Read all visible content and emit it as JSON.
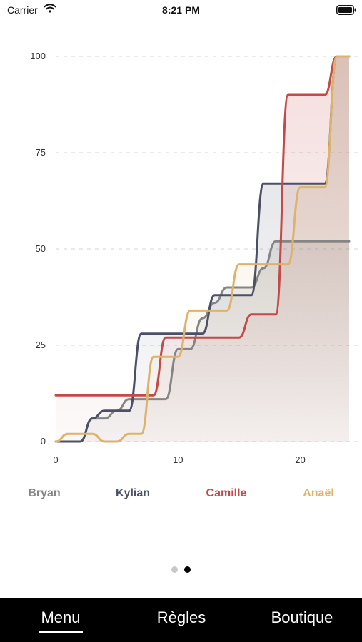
{
  "status_bar": {
    "carrier": "Carrier",
    "time": "8:21 PM"
  },
  "colors": {
    "Bryan": "#858585",
    "Kylian": "#4a5066",
    "Camille": "#c34a48",
    "Anaël": "#ddb36c"
  },
  "chart_data": {
    "type": "line",
    "title": "",
    "xlabel": "",
    "ylabel": "",
    "xlim": [
      0,
      24
    ],
    "ylim": [
      0,
      100
    ],
    "x_ticks": [
      0,
      10,
      20
    ],
    "y_ticks": [
      0,
      25,
      50,
      75,
      100
    ],
    "grid": "horizontal dashed",
    "series": [
      {
        "name": "Bryan",
        "x": [
          0,
          1,
          2,
          3,
          4,
          5,
          6,
          7,
          8,
          9,
          10,
          11,
          12,
          13,
          14,
          15,
          16,
          17,
          18,
          19,
          20,
          21,
          22,
          23,
          24
        ],
        "y": [
          0,
          0,
          0,
          6,
          6,
          8,
          11,
          11,
          11,
          11,
          24,
          24,
          32,
          36,
          40,
          40,
          40,
          45,
          52,
          52,
          52,
          52,
          52,
          52,
          52
        ]
      },
      {
        "name": "Kylian",
        "x": [
          0,
          1,
          2,
          3,
          4,
          5,
          6,
          7,
          8,
          9,
          10,
          11,
          12,
          13,
          14,
          15,
          16,
          17,
          18,
          19,
          20,
          21,
          22,
          23,
          24
        ],
        "y": [
          0,
          0,
          0,
          6,
          8,
          8,
          8,
          28,
          28,
          28,
          28,
          28,
          28,
          38,
          38,
          38,
          38,
          67,
          67,
          67,
          67,
          67,
          67,
          100,
          100
        ]
      },
      {
        "name": "Camille",
        "x": [
          0,
          1,
          2,
          3,
          4,
          5,
          6,
          7,
          8,
          9,
          10,
          11,
          12,
          13,
          14,
          15,
          16,
          17,
          18,
          19,
          20,
          21,
          22,
          23,
          24
        ],
        "y": [
          12,
          12,
          12,
          12,
          12,
          12,
          12,
          12,
          12,
          27,
          27,
          27,
          27,
          27,
          27,
          27,
          33,
          33,
          33,
          90,
          90,
          90,
          90,
          100,
          100
        ]
      },
      {
        "name": "Anaël",
        "x": [
          0,
          1,
          2,
          3,
          4,
          5,
          6,
          7,
          8,
          9,
          10,
          11,
          12,
          13,
          14,
          15,
          16,
          17,
          18,
          19,
          20,
          21,
          22,
          23,
          24
        ],
        "y": [
          0,
          2,
          2,
          2,
          0,
          0,
          2,
          2,
          22,
          22,
          22,
          34,
          34,
          34,
          34,
          46,
          46,
          46,
          46,
          46,
          66,
          66,
          66,
          100,
          100
        ]
      }
    ],
    "legend_position": "bottom"
  },
  "pager": {
    "count": 2,
    "active": 1
  },
  "tabs": [
    {
      "label": "Menu"
    },
    {
      "label": "Règles"
    },
    {
      "label": "Boutique"
    }
  ],
  "active_tab": 0
}
